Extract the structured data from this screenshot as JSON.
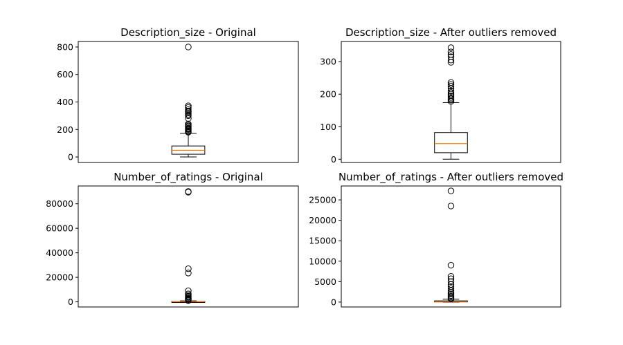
{
  "chart_data": [
    {
      "type": "box",
      "title": "Description_size - Original",
      "ylim": [
        -40,
        840
      ],
      "yticks": [
        0,
        200,
        400,
        600,
        800
      ],
      "ytick_labels": [
        "0",
        "200",
        "400",
        "600",
        "800"
      ],
      "box": {
        "whisker_low": 0,
        "q1": 20,
        "median": 48,
        "q3": 80,
        "whisker_high": 172
      },
      "outliers": [
        180,
        185,
        192,
        200,
        205,
        210,
        218,
        225,
        232,
        240,
        280,
        300,
        310,
        320,
        328,
        335,
        345,
        360,
        372,
        800
      ],
      "colors": {
        "box": "#000000",
        "median": "#ff7f0e",
        "outlier": "#000000"
      }
    },
    {
      "type": "box",
      "title": "Description_size - After outliers removed",
      "ylim": [
        -10,
        362
      ],
      "yticks": [
        0,
        100,
        200,
        300
      ],
      "ytick_labels": [
        "0",
        "100",
        "200",
        "300"
      ],
      "box": {
        "whisker_low": 0,
        "q1": 20,
        "median": 48,
        "q3": 82,
        "whisker_high": 174
      },
      "outliers": [
        178,
        182,
        186,
        190,
        195,
        200,
        205,
        210,
        218,
        225,
        230,
        236,
        298,
        305,
        315,
        322,
        330,
        343
      ],
      "colors": {
        "box": "#000000",
        "median": "#ff7f0e",
        "outlier": "#000000"
      }
    },
    {
      "type": "box",
      "title": "Number_of_ratings - Original",
      "ylim": [
        -4200,
        94500
      ],
      "yticks": [
        0,
        20000,
        40000,
        60000,
        80000
      ],
      "ytick_labels": [
        "0",
        "20000",
        "40000",
        "60000",
        "80000"
      ],
      "box": {
        "whisker_low": 0,
        "q1": 50,
        "median": 150,
        "q3": 350,
        "whisker_high": 800
      },
      "outliers": [
        1000,
        1500,
        2000,
        2500,
        3000,
        3800,
        4500,
        5500,
        6500,
        9000,
        23500,
        27000,
        89500,
        90000
      ],
      "colors": {
        "box": "#000000",
        "median": "#ff7f0e",
        "outlier": "#000000"
      }
    },
    {
      "type": "box",
      "title": "Number_of_ratings - After outliers removed",
      "ylim": [
        -1200,
        28400
      ],
      "yticks": [
        0,
        5000,
        10000,
        15000,
        20000,
        25000
      ],
      "ytick_labels": [
        "0",
        "5000",
        "10000",
        "15000",
        "20000",
        "25000"
      ],
      "box": {
        "whisker_low": 0,
        "q1": 40,
        "median": 120,
        "q3": 300,
        "whisker_high": 700
      },
      "outliers": [
        800,
        1000,
        1300,
        1600,
        2000,
        2400,
        2800,
        3300,
        3800,
        4300,
        5000,
        5700,
        6300,
        9000,
        23500,
        27200
      ],
      "colors": {
        "box": "#000000",
        "median": "#ff7f0e",
        "outlier": "#000000"
      }
    }
  ]
}
